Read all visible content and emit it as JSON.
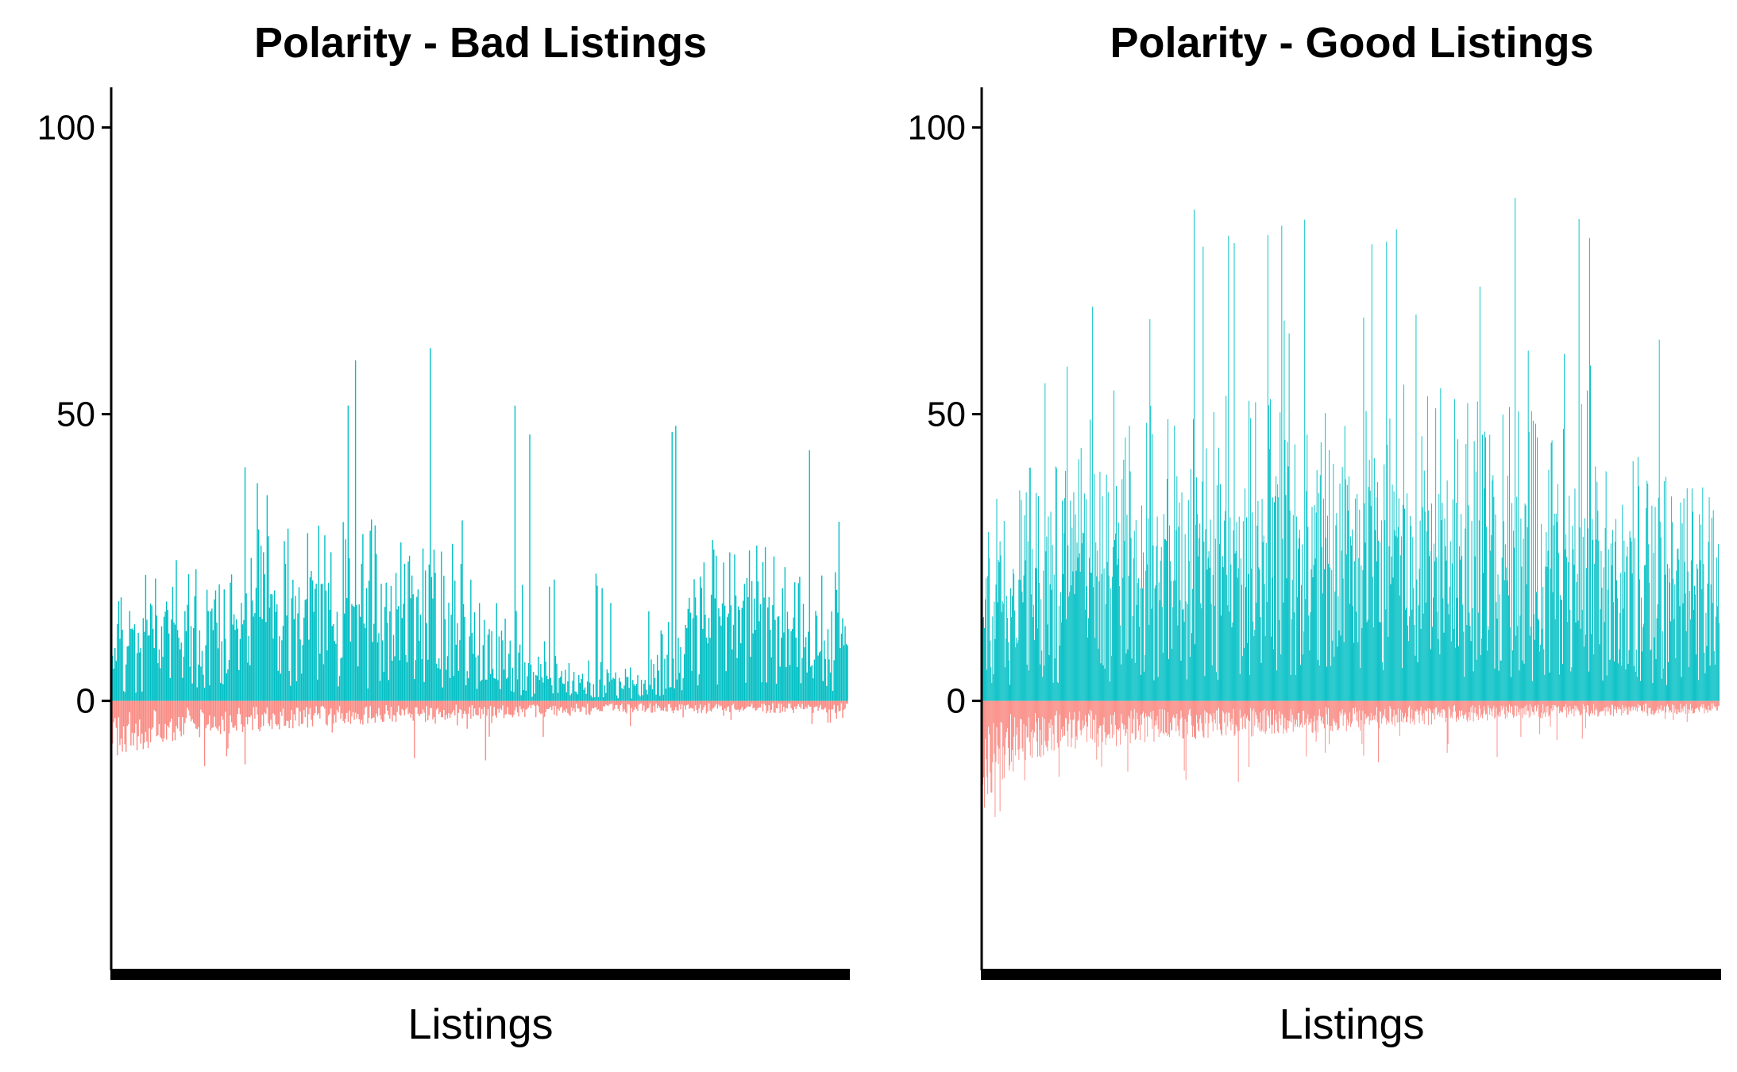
{
  "colors": {
    "positive": "#00BFC4",
    "negative": "#F8766D",
    "axis": "#000000"
  },
  "chart_data": [
    {
      "type": "bar",
      "title": "Polarity - Bad Listings",
      "xlabel": "Listings",
      "ylabel": "",
      "ylim": [
        -47,
        107
      ],
      "yticks": [
        0,
        50,
        100
      ],
      "x_ticks": "none",
      "grid": false,
      "legend": "none",
      "n_bars": 600,
      "seed": 7,
      "profile": [
        [
          0.0,
          12,
          18
        ],
        [
          0.05,
          15,
          40
        ],
        [
          0.12,
          18,
          50
        ],
        [
          0.22,
          20,
          54
        ],
        [
          0.32,
          22,
          60
        ],
        [
          0.4,
          20,
          66
        ],
        [
          0.48,
          18,
          62
        ],
        [
          0.55,
          8,
          55
        ],
        [
          0.62,
          5,
          22
        ],
        [
          0.72,
          4,
          40
        ],
        [
          0.82,
          20,
          58
        ],
        [
          0.9,
          18,
          55
        ],
        [
          1.0,
          15,
          45
        ]
      ],
      "negative_profile": [
        [
          0.0,
          9,
          16
        ],
        [
          0.1,
          6,
          12
        ],
        [
          0.3,
          4,
          10
        ],
        [
          0.5,
          3,
          11
        ],
        [
          0.7,
          2,
          5
        ],
        [
          1.0,
          2,
          4
        ]
      ]
    },
    {
      "type": "bar",
      "title": "Polarity - Good Listings",
      "xlabel": "Listings",
      "ylabel": "",
      "ylim": [
        -47,
        107
      ],
      "yticks": [
        0,
        50,
        100
      ],
      "x_ticks": "none",
      "grid": false,
      "legend": "none",
      "n_bars": 900,
      "seed": 11,
      "profile": [
        [
          0.0,
          25,
          45
        ],
        [
          0.1,
          30,
          60
        ],
        [
          0.2,
          32,
          85
        ],
        [
          0.35,
          35,
          88
        ],
        [
          0.5,
          38,
          85
        ],
        [
          0.65,
          36,
          98
        ],
        [
          0.8,
          33,
          86
        ],
        [
          0.9,
          28,
          80
        ],
        [
          1.0,
          25,
          65
        ]
      ],
      "negative_profile": [
        [
          0.0,
          20,
          27
        ],
        [
          0.03,
          12,
          18
        ],
        [
          0.1,
          8,
          14
        ],
        [
          0.3,
          6,
          16
        ],
        [
          0.5,
          5,
          12
        ],
        [
          0.7,
          3,
          10
        ],
        [
          1.0,
          2,
          4
        ]
      ]
    }
  ]
}
